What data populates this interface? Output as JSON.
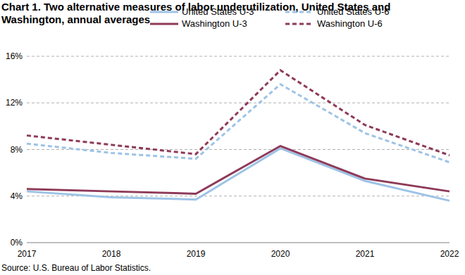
{
  "chart_data": {
    "type": "line",
    "title": "Chart 1. Two alternative measures of labor underutilization, United States and Washington, annual averages",
    "source": "Source: U.S. Bureau of Labor Statistics.",
    "categories": [
      "2017",
      "2018",
      "2019",
      "2020",
      "2021",
      "2022"
    ],
    "series": [
      {
        "name": "United States U-3",
        "color": "#9dc3e6",
        "line_style": "solid",
        "values": [
          4.4,
          3.9,
          3.7,
          8.1,
          5.3,
          3.6
        ]
      },
      {
        "name": "United States U-6",
        "color": "#9dc3e6",
        "line_style": "dashed",
        "values": [
          8.5,
          7.7,
          7.2,
          13.6,
          9.4,
          6.9
        ]
      },
      {
        "name": "Washington U-3",
        "color": "#8e3a59",
        "line_style": "solid",
        "values": [
          4.6,
          4.4,
          4.2,
          8.3,
          5.5,
          4.4
        ]
      },
      {
        "name": "Washington U-6",
        "color": "#8e3a59",
        "line_style": "dashed",
        "values": [
          9.2,
          8.4,
          7.6,
          14.8,
          10.1,
          7.5
        ]
      }
    ],
    "ylim": [
      0,
      16
    ],
    "yticks": [
      {
        "value": 0,
        "label": "0%"
      },
      {
        "value": 4,
        "label": "4%"
      },
      {
        "value": 8,
        "label": "8%"
      },
      {
        "value": 12,
        "label": "12%"
      },
      {
        "value": 16,
        "label": "16%"
      }
    ],
    "grid": true,
    "legend": "top"
  }
}
